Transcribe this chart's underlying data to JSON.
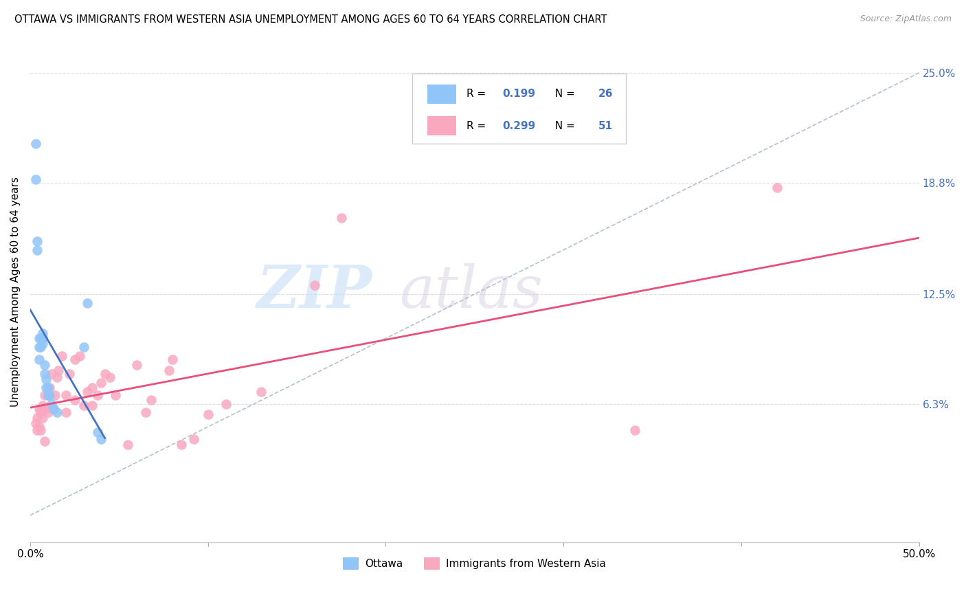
{
  "title": "OTTAWA VS IMMIGRANTS FROM WESTERN ASIA UNEMPLOYMENT AMONG AGES 60 TO 64 YEARS CORRELATION CHART",
  "source": "Source: ZipAtlas.com",
  "ylabel": "Unemployment Among Ages 60 to 64 years",
  "xlim": [
    0.0,
    0.5
  ],
  "ylim": [
    -0.015,
    0.268
  ],
  "xtick_positions": [
    0.0,
    0.1,
    0.2,
    0.3,
    0.4,
    0.5
  ],
  "xticklabels": [
    "0.0%",
    "",
    "",
    "",
    "",
    "50.0%"
  ],
  "ytick_positions": [
    0.063,
    0.125,
    0.188,
    0.25
  ],
  "ytick_labels": [
    "6.3%",
    "12.5%",
    "18.8%",
    "25.0%"
  ],
  "ottawa_R": "0.199",
  "ottawa_N": "26",
  "immigrant_R": "0.299",
  "immigrant_N": "51",
  "ottawa_color": "#92C5F7",
  "immigrant_color": "#F9A8C0",
  "ottawa_line_color": "#4472C4",
  "immigrant_line_color": "#E8507A",
  "diagonal_line_color": "#AABBCC",
  "legend_label_ottawa": "Ottawa",
  "legend_label_immigrant": "Immigrants from Western Asia",
  "ottawa_x": [
    0.003,
    0.003,
    0.004,
    0.004,
    0.005,
    0.005,
    0.005,
    0.006,
    0.006,
    0.007,
    0.007,
    0.007,
    0.008,
    0.008,
    0.009,
    0.009,
    0.01,
    0.01,
    0.011,
    0.012,
    0.013,
    0.015,
    0.03,
    0.032,
    0.038,
    0.04
  ],
  "ottawa_y": [
    0.21,
    0.19,
    0.15,
    0.155,
    0.1,
    0.095,
    0.088,
    0.1,
    0.095,
    0.103,
    0.1,
    0.097,
    0.085,
    0.08,
    0.077,
    0.072,
    0.072,
    0.068,
    0.068,
    0.063,
    0.06,
    0.058,
    0.095,
    0.12,
    0.047,
    0.043
  ],
  "immigrant_x": [
    0.003,
    0.004,
    0.004,
    0.005,
    0.005,
    0.006,
    0.006,
    0.007,
    0.007,
    0.008,
    0.008,
    0.009,
    0.01,
    0.01,
    0.011,
    0.012,
    0.013,
    0.014,
    0.015,
    0.016,
    0.018,
    0.02,
    0.02,
    0.022,
    0.025,
    0.025,
    0.028,
    0.03,
    0.032,
    0.035,
    0.035,
    0.038,
    0.04,
    0.042,
    0.045,
    0.048,
    0.055,
    0.06,
    0.065,
    0.068,
    0.078,
    0.08,
    0.085,
    0.092,
    0.1,
    0.11,
    0.13,
    0.16,
    0.175,
    0.34,
    0.42
  ],
  "immigrant_y": [
    0.052,
    0.048,
    0.055,
    0.05,
    0.06,
    0.058,
    0.048,
    0.062,
    0.055,
    0.068,
    0.042,
    0.06,
    0.068,
    0.058,
    0.072,
    0.08,
    0.06,
    0.068,
    0.078,
    0.082,
    0.09,
    0.058,
    0.068,
    0.08,
    0.088,
    0.065,
    0.09,
    0.062,
    0.07,
    0.062,
    0.072,
    0.068,
    0.075,
    0.08,
    0.078,
    0.068,
    0.04,
    0.085,
    0.058,
    0.065,
    0.082,
    0.088,
    0.04,
    0.043,
    0.057,
    0.063,
    0.07,
    0.13,
    0.168,
    0.048,
    0.185
  ]
}
